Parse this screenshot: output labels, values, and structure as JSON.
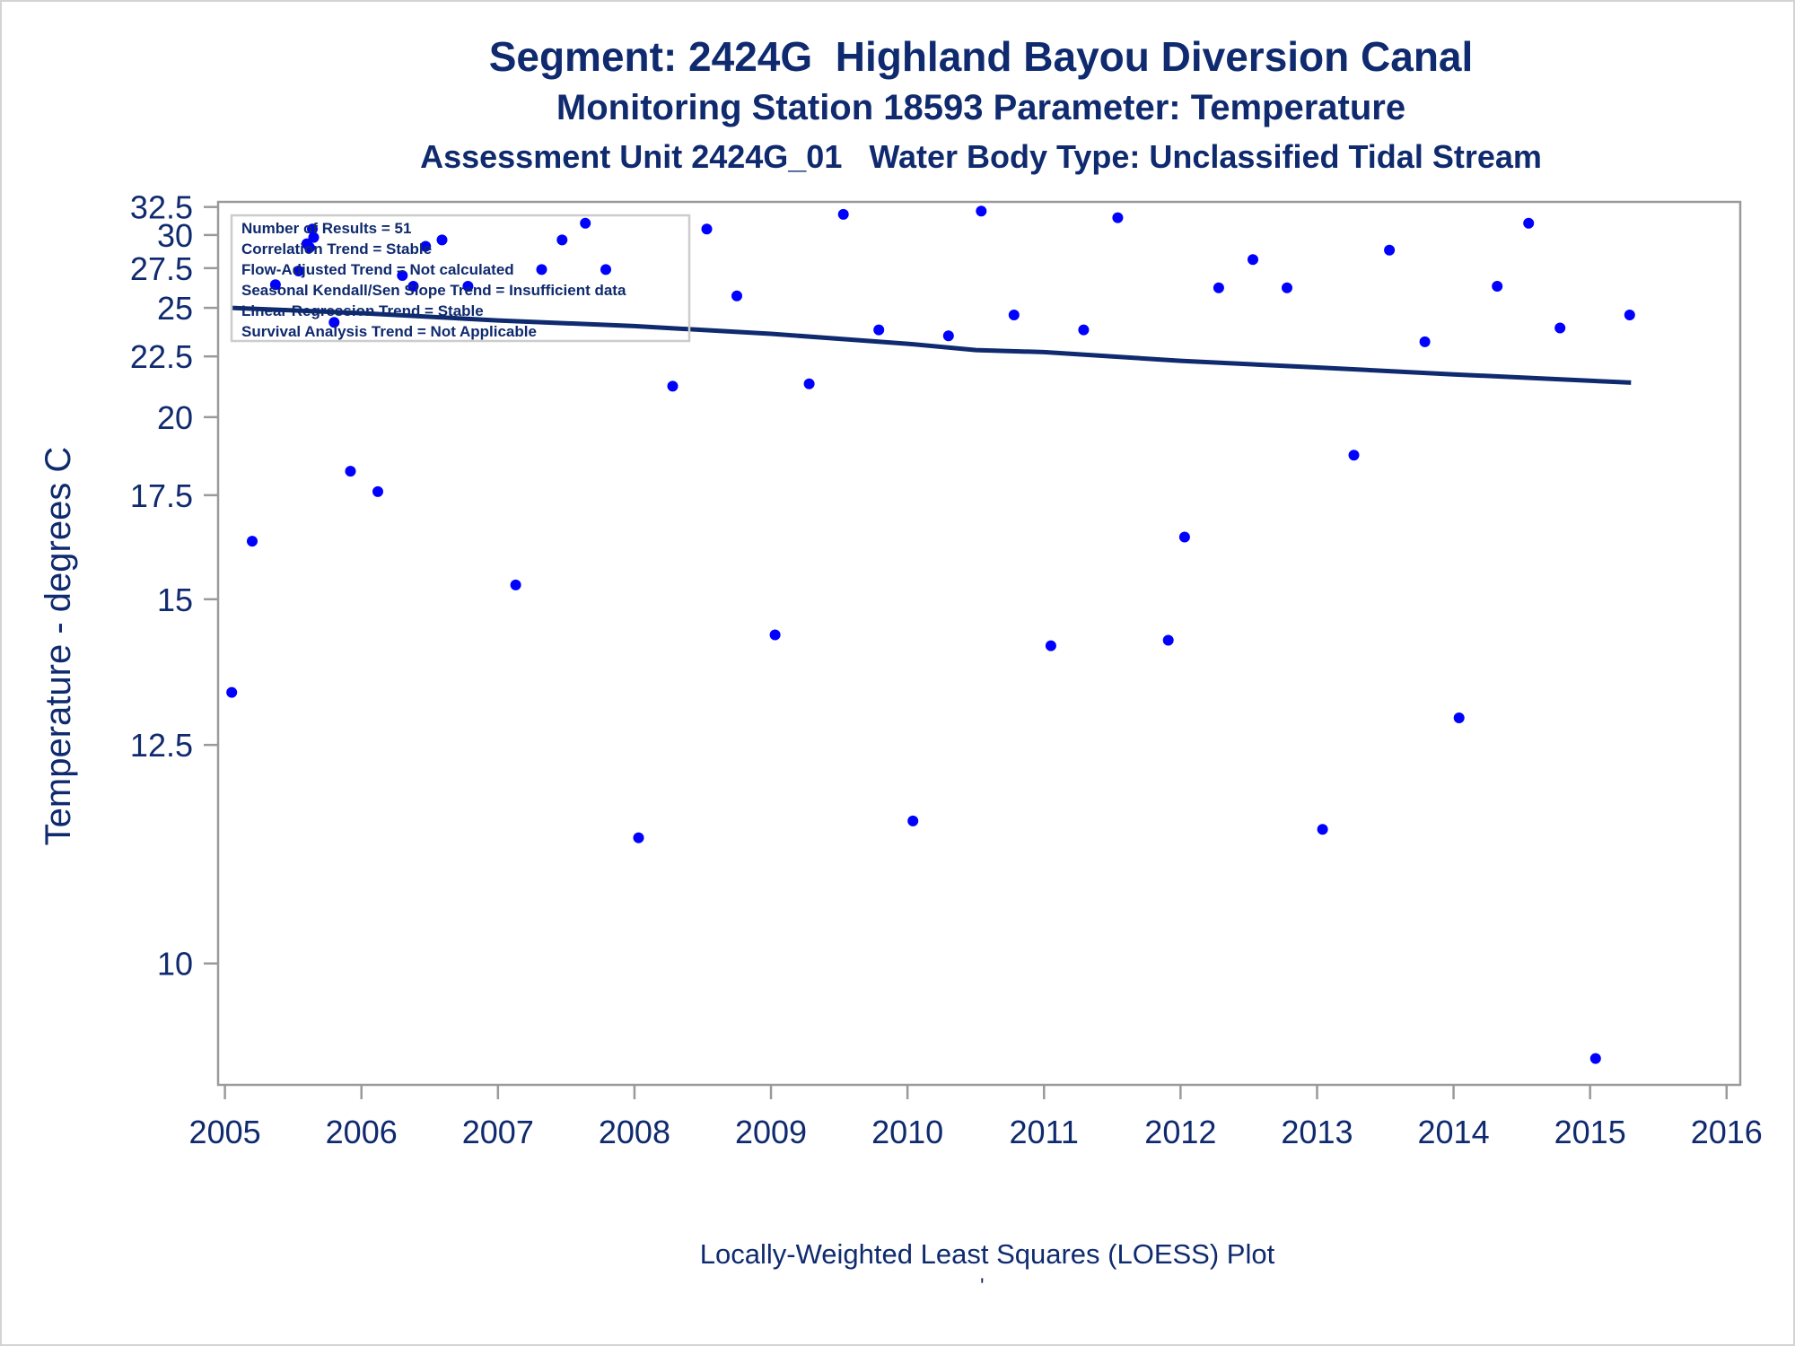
{
  "chart_data": {
    "type": "scatter",
    "title": "Segment: 2424G  Highland Bayou Diversion Canal",
    "subtitle": "Monitoring Station 18593 Parameter: Temperature",
    "subtitle2": "Assessment Unit 2424G_01   Water Body Type: Unclassified Tidal Stream",
    "ylabel": "Temperature - degrees C",
    "xlabel": "",
    "footnote": "Locally-Weighted Least Squares (LOESS) Plot",
    "footnote_mark": "'",
    "ylim": [
      9.0,
      33.0
    ],
    "xlim": [
      2004.95,
      2016.1
    ],
    "y_scale": "reciprocal",
    "y_ticks": [
      "10",
      "12.5",
      "15",
      "17.5",
      "20",
      "22.5",
      "25",
      "27.5",
      "30",
      "32.5"
    ],
    "x_ticks": [
      "2005",
      "2006",
      "2007",
      "2008",
      "2009",
      "2010",
      "2011",
      "2012",
      "2013",
      "2014",
      "2015",
      "2016"
    ],
    "grid": false,
    "legend": "none",
    "stats_box": {
      "position": "top-left",
      "lines": [
        "Number of Results = 51",
        "Correlation Trend = Stable",
        "Flow-Adjusted Trend = Not calculated",
        "Seasonal Kendall/Sen Slope Trend = Insufficient data",
        "Linear Regression Trend = Stable",
        "Survival Analysis Trend = Not Applicable"
      ]
    },
    "colors": {
      "points": "#0000ff",
      "trend_line": "#0f2a6e",
      "text": "#0f2a6e",
      "axis": "#888888"
    },
    "series": [
      {
        "kind": "points",
        "x": [
          2005.05,
          2005.2,
          2005.37,
          2005.54,
          2005.6,
          2005.62,
          2005.64,
          2005.65,
          2005.8,
          2005.92,
          2006.12,
          2006.3,
          2006.38,
          2006.47,
          2006.59,
          2006.78,
          2007.13,
          2007.32,
          2007.47,
          2007.64,
          2007.79,
          2008.03,
          2008.28,
          2008.53,
          2008.75,
          2009.03,
          2009.28,
          2009.53,
          2009.79,
          2010.04,
          2010.3,
          2010.54,
          2010.78,
          2011.05,
          2011.29,
          2011.54,
          2011.91,
          2012.03,
          2012.28,
          2012.53,
          2012.78,
          2013.04,
          2013.27,
          2013.53,
          2013.79,
          2014.04,
          2014.32,
          2014.55,
          2014.78,
          2015.04,
          2015.29
        ],
        "y": [
          13.3,
          16.3,
          26.4,
          27.3,
          29.3,
          29.0,
          30.5,
          29.8,
          24.2,
          18.2,
          17.6,
          27.0,
          26.3,
          29.1,
          29.6,
          26.3,
          15.3,
          27.4,
          29.6,
          31.0,
          27.4,
          11.3,
          21.2,
          30.5,
          25.7,
          14.3,
          21.3,
          31.8,
          23.8,
          11.5,
          23.5,
          32.1,
          24.6,
          14.1,
          23.8,
          31.5,
          14.2,
          16.4,
          26.2,
          28.1,
          26.2,
          11.4,
          18.7,
          28.8,
          23.2,
          12.9,
          26.3,
          31.0,
          23.9,
          9.2,
          24.6
        ]
      },
      {
        "kind": "loess",
        "x": [
          2005.05,
          2006.0,
          2007.0,
          2008.0,
          2009.0,
          2010.0,
          2010.5,
          2011.0,
          2012.0,
          2013.0,
          2014.0,
          2015.3
        ],
        "y": [
          25.0,
          24.7,
          24.3,
          24.0,
          23.6,
          23.1,
          22.8,
          22.7,
          22.3,
          22.0,
          21.7,
          21.35
        ]
      }
    ]
  }
}
